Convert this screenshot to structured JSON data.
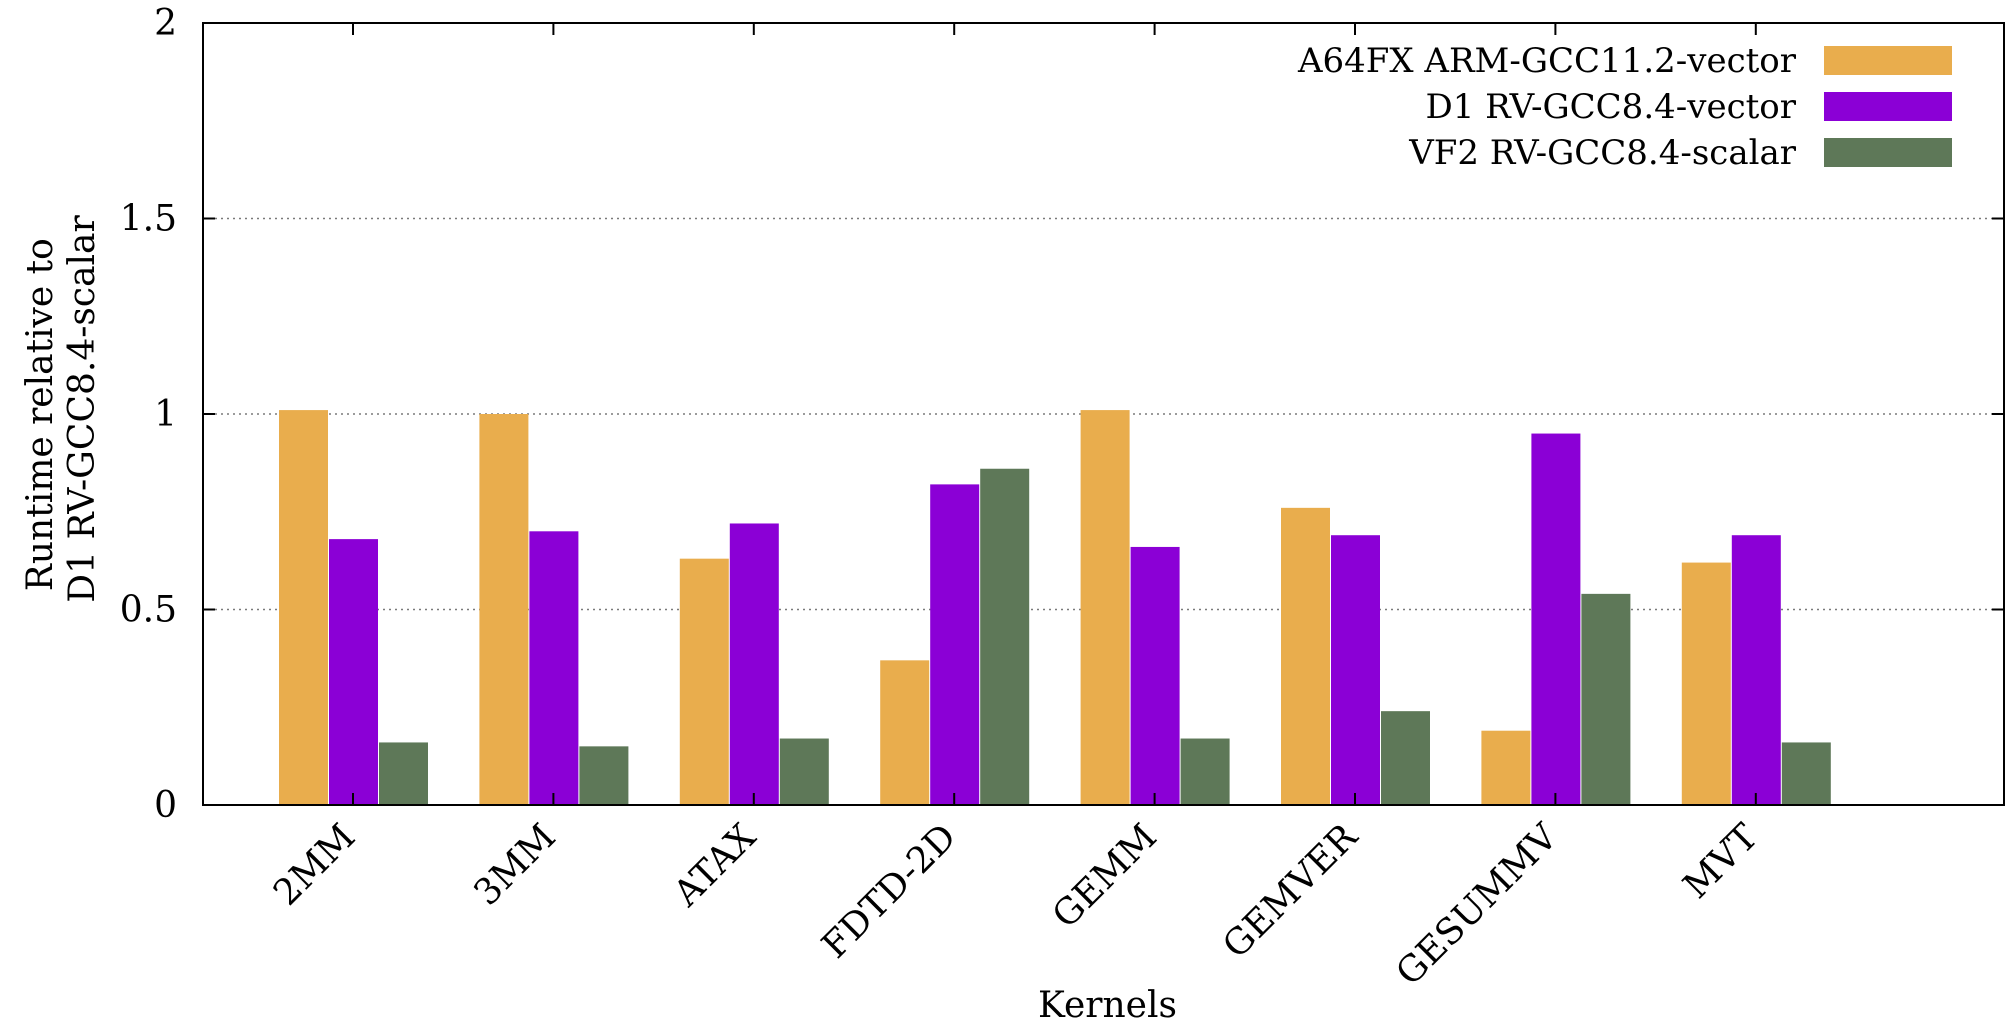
{
  "chart_data": {
    "type": "bar",
    "xlabel": "Kernels",
    "ylabel_lines": [
      "Runtime relative to",
      "D1 RV-GCC8.4-scalar"
    ],
    "ylim": [
      0,
      2
    ],
    "yticks": [
      "0",
      "0.5",
      "1",
      "1.5",
      "2"
    ],
    "ytick_values": [
      0,
      0.5,
      1,
      1.5,
      2
    ],
    "grid": true,
    "legend_position": "top-right",
    "categories": [
      "2MM",
      "3MM",
      "ATAX",
      "FDTD-2D",
      "GEMM",
      "GEMVER",
      "GESUMMV",
      "MVT"
    ],
    "series": [
      {
        "name": "A64FX ARM-GCC11.2-vector",
        "color": "#E9AD4D",
        "values": [
          1.01,
          1.0,
          0.63,
          0.37,
          1.01,
          0.76,
          0.19,
          0.62
        ]
      },
      {
        "name": "D1 RV-GCC8.4-vector",
        "color": "#8B00D6",
        "values": [
          0.68,
          0.7,
          0.72,
          0.82,
          0.66,
          0.69,
          0.95,
          0.69
        ]
      },
      {
        "name": "VF2 RV-GCC8.4-scalar",
        "color": "#5E7858",
        "values": [
          0.16,
          0.15,
          0.17,
          0.86,
          0.17,
          0.24,
          0.54,
          0.16
        ]
      }
    ]
  }
}
